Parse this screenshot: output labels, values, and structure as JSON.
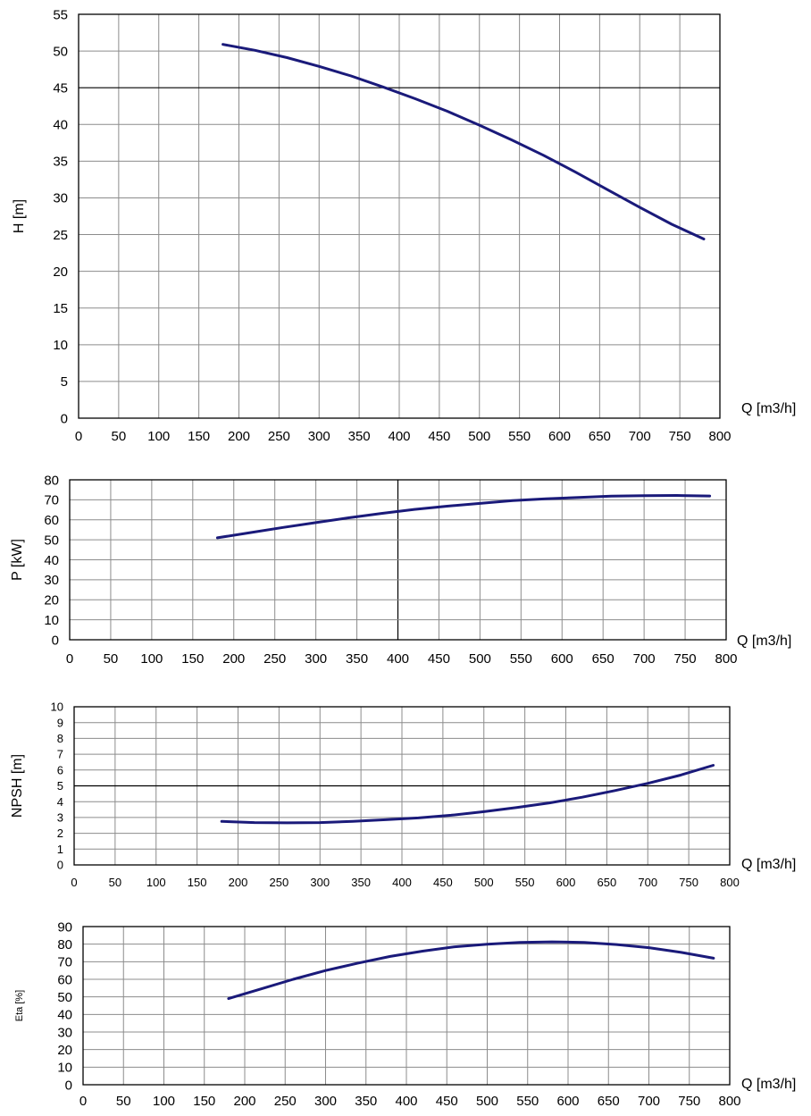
{
  "curve_color": "#1a1a7a",
  "chart_data": [
    {
      "type": "line",
      "ylabel": "H [m]",
      "xlabel": "Q [m3/h]",
      "xlim": [
        0,
        800
      ],
      "ylim": [
        0,
        55
      ],
      "x_ticks": [
        0,
        50,
        100,
        150,
        200,
        250,
        300,
        350,
        400,
        450,
        500,
        550,
        600,
        650,
        700,
        750,
        800
      ],
      "y_ticks": [
        0,
        5,
        10,
        15,
        20,
        25,
        30,
        35,
        40,
        45,
        50,
        55
      ],
      "x_highlight": [],
      "y_highlight": [
        45
      ],
      "grid": true,
      "series": [
        {
          "x": [
            180,
            220,
            260,
            300,
            340,
            380,
            420,
            460,
            500,
            540,
            580,
            620,
            660,
            700,
            740,
            780
          ],
          "y": [
            50.9,
            50.1,
            49.1,
            47.9,
            46.6,
            45.1,
            43.5,
            41.8,
            39.9,
            37.9,
            35.8,
            33.5,
            31.1,
            28.7,
            26.4,
            24.4
          ]
        }
      ]
    },
    {
      "type": "line",
      "ylabel": "P [kW]",
      "xlabel": "Q [m3/h]",
      "xlim": [
        0,
        800
      ],
      "ylim": [
        0,
        80
      ],
      "x_ticks": [
        0,
        50,
        100,
        150,
        200,
        250,
        300,
        350,
        400,
        450,
        500,
        550,
        600,
        650,
        700,
        750,
        800
      ],
      "y_ticks": [
        0,
        10,
        20,
        30,
        40,
        50,
        60,
        70,
        80
      ],
      "x_highlight": [
        400
      ],
      "y_highlight": [],
      "grid": true,
      "series": [
        {
          "x": [
            180,
            220,
            260,
            300,
            340,
            380,
            420,
            460,
            500,
            540,
            580,
            620,
            660,
            700,
            740,
            780
          ],
          "y": [
            51,
            53.6,
            56.2,
            58.6,
            61,
            63.2,
            65.2,
            66.8,
            68.2,
            69.6,
            70.5,
            71.2,
            71.8,
            72.1,
            72.2,
            71.9
          ]
        }
      ]
    },
    {
      "type": "line",
      "ylabel": "NPSH [m]",
      "xlabel": "Q [m3/h]",
      "xlim": [
        0,
        800
      ],
      "ylim": [
        0,
        10
      ],
      "x_ticks": [
        0,
        50,
        100,
        150,
        200,
        250,
        300,
        350,
        400,
        450,
        500,
        550,
        600,
        650,
        700,
        750,
        800
      ],
      "y_ticks": [
        0,
        1,
        2,
        3,
        4,
        5,
        6,
        7,
        8,
        9,
        10
      ],
      "x_highlight": [],
      "y_highlight": [
        5
      ],
      "grid": true,
      "series": [
        {
          "x": [
            180,
            220,
            260,
            300,
            340,
            380,
            420,
            460,
            500,
            540,
            580,
            620,
            660,
            700,
            740,
            780
          ],
          "y": [
            2.75,
            2.68,
            2.66,
            2.68,
            2.75,
            2.86,
            2.97,
            3.14,
            3.37,
            3.63,
            3.92,
            4.28,
            4.7,
            5.16,
            5.68,
            6.3
          ]
        }
      ]
    },
    {
      "type": "line",
      "ylabel": "Eta [%]",
      "xlabel": "Q [m3/h]",
      "xlim": [
        0,
        800
      ],
      "ylim": [
        0,
        90
      ],
      "x_ticks": [
        0,
        50,
        100,
        150,
        200,
        250,
        300,
        350,
        400,
        450,
        500,
        550,
        600,
        650,
        700,
        750,
        800
      ],
      "y_ticks": [
        0,
        10,
        20,
        30,
        40,
        50,
        60,
        70,
        80,
        90
      ],
      "x_highlight": [],
      "y_highlight": [],
      "grid": true,
      "series": [
        {
          "x": [
            180,
            220,
            260,
            300,
            340,
            380,
            420,
            460,
            500,
            540,
            580,
            620,
            660,
            700,
            740,
            780
          ],
          "y": [
            49,
            54.5,
            60,
            65,
            69.2,
            73,
            76,
            78.5,
            80,
            81,
            81.3,
            81,
            79.8,
            78,
            75.3,
            72
          ]
        }
      ]
    }
  ]
}
